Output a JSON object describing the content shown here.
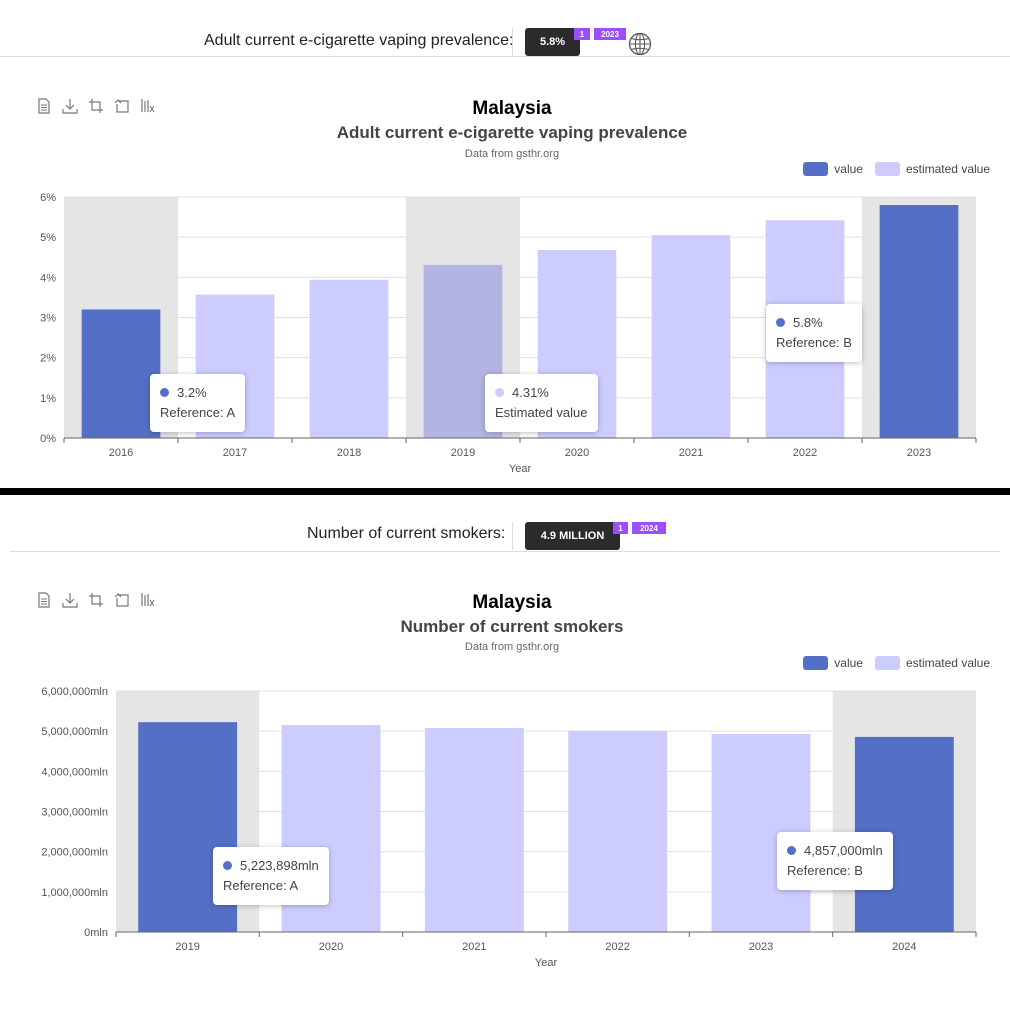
{
  "colors": {
    "value": "#5470c6",
    "estimated": "#ccccff",
    "badge": "#9b4dff",
    "pill": "#2b2b2b",
    "highlight_band": "#e5e5e5"
  },
  "toolbar_icons": [
    "document-icon",
    "download-icon",
    "crop-icon",
    "restore-icon",
    "data-view-icon"
  ],
  "legend": {
    "value_label": "value",
    "estimated_label": "estimated value"
  },
  "panel1": {
    "stat": {
      "label": "Adult current e-cigarette vaping prevalence:",
      "value": "5.8%",
      "ref": "1",
      "year": "2023",
      "icon": "globe-icon"
    },
    "title": "Malaysia",
    "subtitle": "Adult current e-cigarette vaping prevalence",
    "source": "Data from gsthr.org",
    "tooltips": [
      {
        "value": "3.2%",
        "label": "Reference: A",
        "series": "value"
      },
      {
        "value": "4.31%",
        "label": "Estimated value",
        "series": "estimated"
      },
      {
        "value": "5.8%",
        "label": "Reference: B",
        "series": "value"
      }
    ]
  },
  "panel2": {
    "stat": {
      "label": "Number of current smokers:",
      "value": "4.9 MILLION",
      "ref": "1",
      "year": "2024"
    },
    "title": "Malaysia",
    "subtitle": "Number of current smokers",
    "source": "Data from gsthr.org",
    "tooltips": [
      {
        "value": "5,223,898mln",
        "label": "Reference: A",
        "series": "value"
      },
      {
        "value": "4,857,000mln",
        "label": "Reference: B",
        "series": "value"
      }
    ]
  },
  "chart_data": [
    {
      "type": "bar",
      "title": "Malaysia",
      "subtitle": "Adult current e-cigarette vaping prevalence",
      "xlabel": "Year",
      "ylabel": "",
      "categories": [
        "2016",
        "2017",
        "2018",
        "2019",
        "2020",
        "2021",
        "2022",
        "2023"
      ],
      "values": [
        3.2,
        3.57,
        3.94,
        4.31,
        4.68,
        5.05,
        5.42,
        5.8
      ],
      "estimated": [
        false,
        true,
        true,
        true,
        true,
        true,
        true,
        false
      ],
      "highlighted": [
        true,
        false,
        false,
        true,
        false,
        false,
        false,
        true
      ],
      "ylim": [
        0,
        6
      ],
      "yticks": [
        0,
        1,
        2,
        3,
        4,
        5,
        6
      ],
      "ytick_labels": [
        "0%",
        "1%",
        "2%",
        "3%",
        "4%",
        "5%",
        "6%"
      ],
      "legend": [
        "value",
        "estimated value"
      ]
    },
    {
      "type": "bar",
      "title": "Malaysia",
      "subtitle": "Number of current smokers",
      "xlabel": "Year",
      "ylabel": "",
      "categories": [
        "2019",
        "2020",
        "2021",
        "2022",
        "2023",
        "2024"
      ],
      "values": [
        5223898,
        5150000,
        5080000,
        5010000,
        4930000,
        4857000
      ],
      "estimated": [
        false,
        true,
        true,
        true,
        true,
        false
      ],
      "highlighted": [
        true,
        false,
        false,
        false,
        false,
        true
      ],
      "ylim": [
        0,
        6000000
      ],
      "yticks": [
        0,
        1000000,
        2000000,
        3000000,
        4000000,
        5000000,
        6000000
      ],
      "ytick_labels": [
        "0mln",
        "1,000,000mln",
        "2,000,000mln",
        "3,000,000mln",
        "4,000,000mln",
        "5,000,000mln",
        "6,000,000mln"
      ],
      "legend": [
        "value",
        "estimated value"
      ]
    }
  ]
}
